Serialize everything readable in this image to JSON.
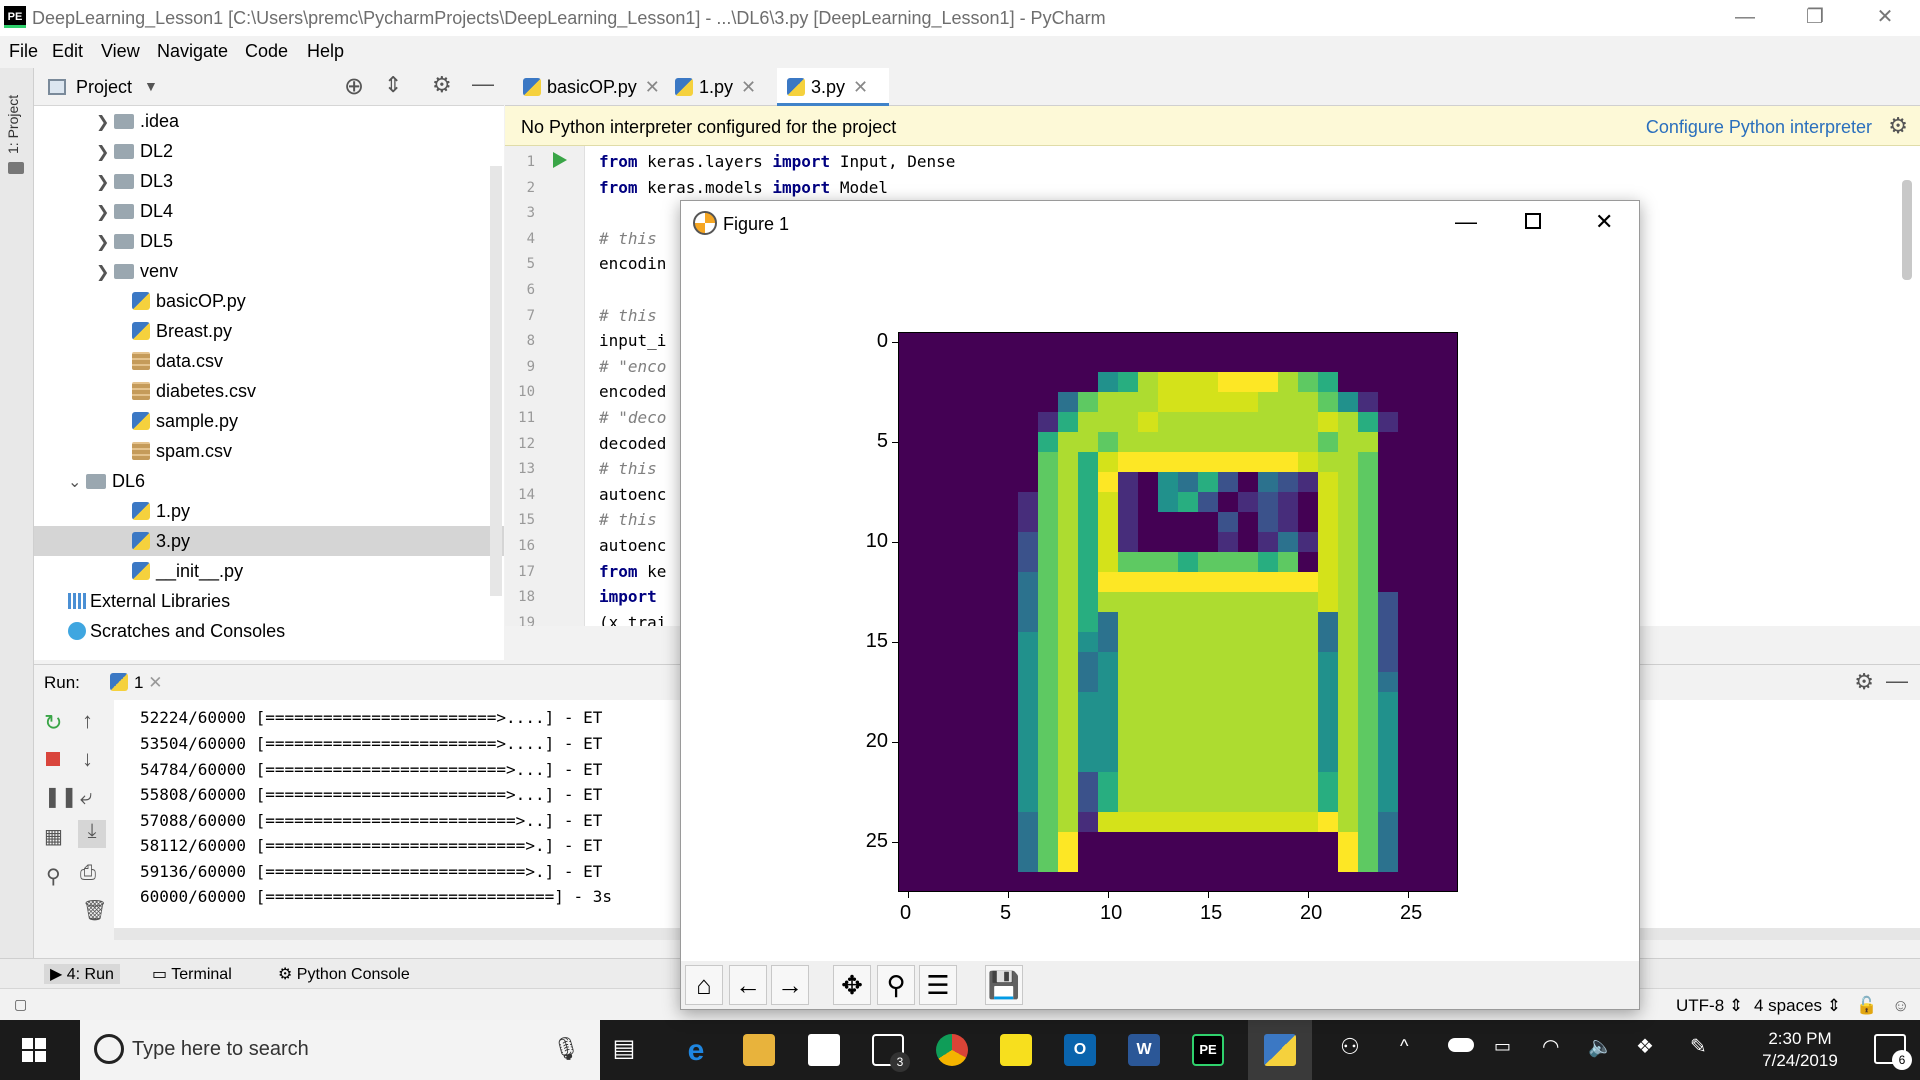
{
  "window": {
    "title": "DeepLearning_Lesson1 [C:\\Users\\premc\\PycharmProjects\\DeepLearning_Lesson1] - ...\\DL6\\3.py [DeepLearning_Lesson1] - PyCharm",
    "logo": "PE"
  },
  "menu": [
    "File",
    "Edit",
    "View",
    "Navigate",
    "Code",
    "Help"
  ],
  "side_stripe": {
    "project_label": "1: Project"
  },
  "project_panel": {
    "header": "Project",
    "tree": [
      {
        "label": ".idea",
        "type": "folder"
      },
      {
        "label": "DL2",
        "type": "folder"
      },
      {
        "label": "DL3",
        "type": "folder"
      },
      {
        "label": "DL4",
        "type": "folder"
      },
      {
        "label": "DL5",
        "type": "folder"
      },
      {
        "label": "venv",
        "type": "folder"
      },
      {
        "label": "basicOP.py",
        "type": "py"
      },
      {
        "label": "Breast.py",
        "type": "py"
      },
      {
        "label": "data.csv",
        "type": "csv"
      },
      {
        "label": "diabetes.csv",
        "type": "csv"
      },
      {
        "label": "sample.py",
        "type": "py"
      },
      {
        "label": "spam.csv",
        "type": "csv"
      },
      {
        "label": "DL6",
        "type": "folder-open"
      },
      {
        "label": "1.py",
        "type": "py"
      },
      {
        "label": "3.py",
        "type": "py",
        "selected": true
      },
      {
        "label": "__init__.py",
        "type": "py"
      },
      {
        "label": "External Libraries",
        "type": "lib"
      },
      {
        "label": "Scratches and Consoles",
        "type": "scratch"
      }
    ]
  },
  "tabs": [
    {
      "label": "basicOP.py",
      "active": false
    },
    {
      "label": "1.py",
      "active": false
    },
    {
      "label": "3.py",
      "active": true
    }
  ],
  "notification": {
    "message": "No Python interpreter configured for the project",
    "link": "Configure Python interpreter"
  },
  "editor": {
    "lines": [
      {
        "n": "1",
        "parts": [
          {
            "t": "from",
            "c": "kw"
          },
          {
            "t": " keras.layers "
          },
          {
            "t": "import",
            "c": "kw"
          },
          {
            "t": " Input, Dense"
          }
        ]
      },
      {
        "n": "2",
        "parts": [
          {
            "t": "from",
            "c": "kw"
          },
          {
            "t": " keras.models "
          },
          {
            "t": "import",
            "c": "kw"
          },
          {
            "t": " Model"
          }
        ]
      },
      {
        "n": "3",
        "parts": []
      },
      {
        "n": "4",
        "parts": [
          {
            "t": "# this ",
            "c": "cm"
          }
        ]
      },
      {
        "n": "5",
        "parts": [
          {
            "t": "encodin"
          }
        ]
      },
      {
        "n": "6",
        "parts": []
      },
      {
        "n": "7",
        "parts": [
          {
            "t": "# this ",
            "c": "cm"
          }
        ]
      },
      {
        "n": "8",
        "parts": [
          {
            "t": "input_i"
          }
        ]
      },
      {
        "n": "9",
        "parts": [
          {
            "t": "# \"enco",
            "c": "cm"
          }
        ]
      },
      {
        "n": "10",
        "parts": [
          {
            "t": "encoded"
          }
        ]
      },
      {
        "n": "11",
        "parts": [
          {
            "t": "# \"deco",
            "c": "cm"
          }
        ]
      },
      {
        "n": "12",
        "parts": [
          {
            "t": "decoded"
          }
        ]
      },
      {
        "n": "13",
        "parts": [
          {
            "t": "# this ",
            "c": "cm"
          }
        ]
      },
      {
        "n": "14",
        "parts": [
          {
            "t": "autoenc"
          }
        ]
      },
      {
        "n": "15",
        "parts": [
          {
            "t": "# this ",
            "c": "cm"
          }
        ]
      },
      {
        "n": "16",
        "parts": [
          {
            "t": "autoenc"
          }
        ]
      },
      {
        "n": "17",
        "parts": [
          {
            "t": "from",
            "c": "kw"
          },
          {
            "t": " ke"
          }
        ]
      },
      {
        "n": "18",
        "parts": [
          {
            "t": "import",
            "c": "kw"
          },
          {
            "t": " "
          }
        ]
      },
      {
        "n": "19",
        "parts": [
          {
            "t": "(x_trai"
          }
        ]
      }
    ]
  },
  "run_panel": {
    "label": "Run:",
    "tab": "1",
    "output": [
      "52224/60000 [========================>....] - ET",
      "53504/60000 [========================>....] - ET",
      "54784/60000 [=========================>...] - ET",
      "55808/60000 [=========================>...] - ET",
      "57088/60000 [==========================>..] - ET",
      "58112/60000 [===========================>.] - ET",
      "59136/60000 [===========================>.] - ET",
      "60000/60000 [==============================] - 3s"
    ]
  },
  "tool_windows": {
    "run": "4: Run",
    "terminal": "Terminal",
    "python_console": "Python Console"
  },
  "status": {
    "encoding": "UTF-8",
    "indent": "4 spaces"
  },
  "taskbar": {
    "search_placeholder": "Type here to search",
    "time": "2:30 PM",
    "date": "7/24/2019",
    "mail_badge": "3",
    "notif_badge": "6"
  },
  "figure": {
    "title": "Figure 1",
    "toolbar": [
      "home-icon",
      "back-icon",
      "forward-icon",
      "pan-icon",
      "zoom-icon",
      "configure-icon",
      "save-icon"
    ]
  },
  "chart_data": {
    "type": "heatmap",
    "colormap": "viridis",
    "x_ticks": [
      "0",
      "5",
      "10",
      "15",
      "20",
      "25"
    ],
    "y_ticks": [
      "0",
      "5",
      "10",
      "15",
      "20",
      "25"
    ],
    "xlim": [
      -0.5,
      27.5
    ],
    "ylim": [
      27.5,
      -0.5
    ],
    "rows": [
      "0000000000000000000000000000",
      "0000000000000000000000000000",
      "00000000004578889997650000000",
      "000000003677788888777641000000",
      "0000000157778777777778751000000",
      "0000000577677777777776770000000",
      "0000000675899999999987760000000",
      "0000000675910435203218760000000",
      "0000001675810452012108760000000",
      "0000001675810000202108760000000",
      "0000002675810000101318760000000",
      "0000002675866656665608760000000",
      "0000003675999999999998760000000",
      "0000003675777777777778762000000",
      "0000003675377777777773762000000",
      "0000004674377777777773762000000",
      "0000004673477777777774762000000",
      "0000004673477777777774763000000",
      "0000004674477777777774764000000",
      "0000004674477777777774764000000",
      "0000004674477777777774764000000",
      "0000004674477777777774764000000",
      "0000004672577777777775764000000",
      "0000004672577777777775764000000",
      "0000003671888888888889763000000",
      "0000003690000000000000963000000",
      "0000003690000000000000963000000",
      "0000000000000000000000000000"
    ]
  }
}
